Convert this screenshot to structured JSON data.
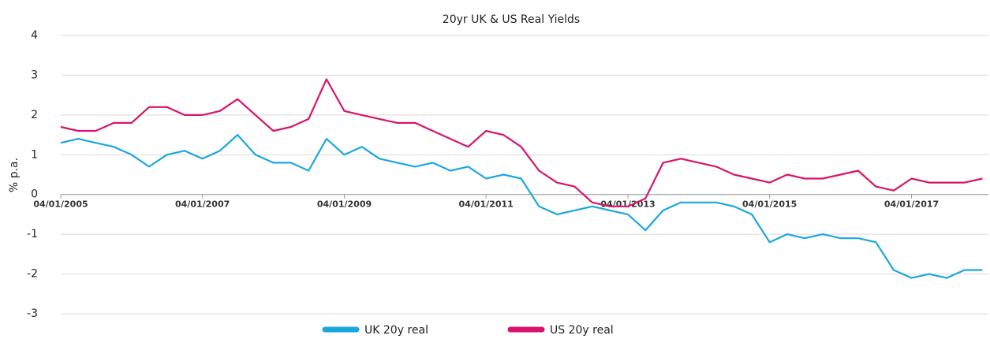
{
  "chart_data": {
    "type": "line",
    "title": "20yr UK & US Real Yields",
    "ylabel": "% p.a.",
    "x": [
      "04/01/2005",
      "04/04/2005",
      "04/07/2005",
      "04/10/2005",
      "04/01/2006",
      "04/04/2006",
      "04/07/2006",
      "04/10/2006",
      "04/01/2007",
      "04/04/2007",
      "04/07/2007",
      "04/10/2007",
      "04/01/2008",
      "04/04/2008",
      "04/07/2008",
      "04/10/2008",
      "04/01/2009",
      "04/04/2009",
      "04/07/2009",
      "04/10/2009",
      "04/01/2010",
      "04/04/2010",
      "04/07/2010",
      "04/10/2010",
      "04/01/2011",
      "04/04/2011",
      "04/07/2011",
      "04/10/2011",
      "04/01/2012",
      "04/04/2012",
      "04/07/2012",
      "04/10/2012",
      "04/01/2013",
      "04/04/2013",
      "04/07/2013",
      "04/10/2013",
      "04/01/2014",
      "04/04/2014",
      "04/07/2014",
      "04/10/2014",
      "04/01/2015",
      "04/04/2015",
      "04/07/2015",
      "04/10/2015",
      "04/01/2016",
      "04/04/2016",
      "04/07/2016",
      "04/10/2016",
      "04/01/2017",
      "04/04/2017",
      "04/07/2017",
      "04/10/2017",
      "04/01/2018"
    ],
    "series": [
      {
        "name": "UK 20y real",
        "color": "#1aa7df",
        "values": [
          1.3,
          1.4,
          1.3,
          1.2,
          1.0,
          0.7,
          1.0,
          1.1,
          0.9,
          1.1,
          1.5,
          1.0,
          0.8,
          0.8,
          0.6,
          1.4,
          1.0,
          1.2,
          0.9,
          0.8,
          0.7,
          0.8,
          0.6,
          0.7,
          0.4,
          0.5,
          0.4,
          -0.3,
          -0.5,
          -0.4,
          -0.3,
          -0.4,
          -0.5,
          -0.9,
          -0.4,
          -0.2,
          -0.2,
          -0.2,
          -0.3,
          -0.5,
          -1.2,
          -1.0,
          -1.1,
          -1.0,
          -1.1,
          -1.1,
          -1.2,
          -1.9,
          -2.1,
          -2.0,
          -2.1,
          -1.9,
          -1.9
        ]
      },
      {
        "name": "US 20y real",
        "color": "#d8136b",
        "values": [
          1.7,
          1.6,
          1.6,
          1.8,
          1.8,
          2.2,
          2.2,
          2.0,
          2.0,
          2.1,
          2.4,
          2.0,
          1.6,
          1.7,
          1.9,
          2.9,
          2.1,
          2.0,
          1.9,
          1.8,
          1.8,
          1.6,
          1.4,
          1.2,
          1.6,
          1.5,
          1.2,
          0.6,
          0.3,
          0.2,
          -0.2,
          -0.3,
          -0.3,
          -0.1,
          0.8,
          0.9,
          0.8,
          0.7,
          0.5,
          0.4,
          0.3,
          0.5,
          0.4,
          0.4,
          0.5,
          0.6,
          0.2,
          0.1,
          0.4,
          0.3,
          0.3,
          0.3,
          0.4
        ]
      }
    ],
    "xlim": [
      "04/01/2005",
      "04/02/2018"
    ],
    "xticks": [
      "04/01/2005",
      "04/01/2007",
      "04/01/2009",
      "04/01/2011",
      "04/01/2013",
      "04/01/2015",
      "04/01/2017"
    ],
    "ylim": [
      -3,
      4
    ],
    "yticks": [
      -3,
      -2,
      -1,
      0,
      1,
      2,
      3,
      4
    ],
    "grid": true,
    "legend": "bottom"
  }
}
